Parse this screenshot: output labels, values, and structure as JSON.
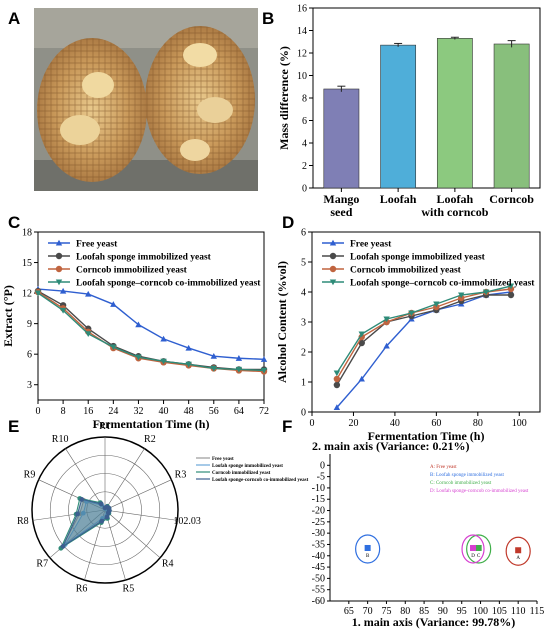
{
  "panels": {
    "A": {
      "label": "A"
    },
    "B": {
      "label": "B",
      "chart_data": {
        "type": "bar",
        "categories": [
          "Mango\nseed",
          "Loofah",
          "Loofah\nwith corncob",
          "Corncob"
        ],
        "values": [
          8.8,
          12.7,
          13.3,
          12.8
        ],
        "errors": [
          0.25,
          0.15,
          0.1,
          0.3
        ],
        "colors": [
          "#7f7fb5",
          "#4faed9",
          "#8cc97f",
          "#88bf7c"
        ],
        "ylabel": "Mass difference (%)",
        "xlabel": "",
        "ylim": [
          0,
          16
        ],
        "yticks": [
          0,
          2,
          4,
          6,
          8,
          10,
          12,
          14,
          16
        ]
      }
    },
    "C": {
      "label": "C",
      "chart_data": {
        "type": "line",
        "xlabel": "Fermentation Time (h)",
        "ylabel": "Extract (°P)",
        "xlim": [
          0,
          72
        ],
        "ylim": [
          1.5,
          18
        ],
        "xticks": [
          0,
          8,
          16,
          24,
          32,
          40,
          48,
          56,
          64,
          72
        ],
        "yticks": [
          3,
          6,
          9,
          12,
          15,
          18
        ],
        "legend_position": "top-left",
        "x": [
          0,
          8,
          16,
          24,
          32,
          40,
          48,
          56,
          64,
          72
        ],
        "series": [
          {
            "name": "Free yeast",
            "color": "#2f5fd0",
            "marker": "triangle",
            "values": [
              12.4,
              12.2,
              11.9,
              10.9,
              8.9,
              7.5,
              6.6,
              5.8,
              5.6,
              5.5
            ]
          },
          {
            "name": "Loofah sponge immobilized yeast",
            "color": "#4a4a4a",
            "marker": "circle",
            "values": [
              12.2,
              10.8,
              8.5,
              6.8,
              5.8,
              5.3,
              5.0,
              4.7,
              4.5,
              4.5
            ]
          },
          {
            "name": "Corncob immobilized yeast",
            "color": "#c0643f",
            "marker": "circle",
            "values": [
              12.1,
              10.5,
              8.2,
              6.6,
              5.6,
              5.2,
              4.9,
              4.6,
              4.4,
              4.3
            ]
          },
          {
            "name": "Loofah sponge–corncob co-immobilized yeast",
            "color": "#2e8b78",
            "marker": "triangle-down",
            "values": [
              12.0,
              10.3,
              8.0,
              6.7,
              5.7,
              5.3,
              5.0,
              4.6,
              4.5,
              4.4
            ]
          }
        ]
      }
    },
    "D": {
      "label": "D",
      "chart_data": {
        "type": "line",
        "xlabel": "Fermentation Time (h)",
        "ylabel": "Alcohol Content (%vol)",
        "xlim": [
          0,
          110
        ],
        "ylim": [
          0,
          6
        ],
        "xticks": [
          0,
          20,
          40,
          60,
          80,
          100
        ],
        "yticks": [
          0,
          1,
          2,
          3,
          4,
          5,
          6
        ],
        "legend_position": "top-left",
        "x": [
          12,
          24,
          36,
          48,
          60,
          72,
          84,
          96
        ],
        "series": [
          {
            "name": "Free yeast",
            "color": "#2f5fd0",
            "marker": "triangle",
            "values": [
              0.15,
              1.1,
              2.2,
              3.1,
              3.4,
              3.6,
              3.9,
              4.0
            ]
          },
          {
            "name": "Loofah sponge immobilized yeast",
            "color": "#4a4a4a",
            "marker": "circle",
            "values": [
              0.9,
              2.3,
              3.0,
              3.2,
              3.4,
              3.7,
              3.9,
              3.9
            ]
          },
          {
            "name": "Corncob immobilized yeast",
            "color": "#c0643f",
            "marker": "circle",
            "values": [
              1.1,
              2.5,
              3.0,
              3.3,
              3.5,
              3.8,
              4.0,
              4.1
            ]
          },
          {
            "name": "Loofah sponge–corncob co-immobilized yeast",
            "color": "#2e8b78",
            "marker": "triangle-down",
            "values": [
              1.3,
              2.6,
              3.1,
              3.3,
              3.6,
              3.9,
              4.0,
              4.2
            ]
          }
        ]
      }
    },
    "E": {
      "label": "E",
      "chart_data": {
        "type": "radar",
        "axes": [
          "R1",
          "R2",
          "R3",
          "102.03",
          "R4",
          "R5",
          "R6",
          "R7",
          "R8",
          "R9",
          "R10"
        ],
        "max": 1.0,
        "legend_position": "top-right",
        "series": [
          {
            "name": "Free yeast",
            "color": "#9a9a9a",
            "values": [
              0.02,
              0.05,
              0.05,
              0.05,
              0.06,
              0.1,
              0.15,
              0.78,
              0.35,
              0.32,
              0.1
            ]
          },
          {
            "name": "Loofah sponge immobilized yeast",
            "color": "#6aa7d8",
            "values": [
              0.02,
              0.04,
              0.05,
              0.05,
              0.05,
              0.08,
              0.12,
              0.72,
              0.3,
              0.28,
              0.08
            ]
          },
          {
            "name": "Corncob immobilized yeast",
            "color": "#2e8b78",
            "values": [
              0.03,
              0.06,
              0.06,
              0.06,
              0.07,
              0.12,
              0.18,
              0.8,
              0.4,
              0.38,
              0.12
            ]
          },
          {
            "name": "Loofah sponge-corncob co-immobilized yeast",
            "color": "#3c5f8f",
            "values": [
              0.03,
              0.05,
              0.06,
              0.06,
              0.06,
              0.1,
              0.16,
              0.76,
              0.38,
              0.35,
              0.1
            ]
          }
        ]
      }
    },
    "F": {
      "label": "F",
      "chart_data": {
        "type": "scatter",
        "title": "2. main axis (Variance: 0.21%)",
        "xlabel": "1. main axis (Variance: 99.78%)",
        "ylabel": "",
        "xlim": [
          60,
          115
        ],
        "ylim": [
          -60,
          5
        ],
        "xticks": [
          65,
          70,
          75,
          80,
          85,
          90,
          95,
          100,
          105,
          110,
          115
        ],
        "yticks": [
          0,
          -5,
          -10,
          -15,
          -20,
          -25,
          -30,
          -35,
          -40,
          -45,
          -50,
          -55,
          -60
        ],
        "legend_position": "top-right",
        "groups": [
          {
            "id": "A",
            "name": "A: Free yeast",
            "color": "#c0392b",
            "x": 110,
            "y": -38
          },
          {
            "id": "B",
            "name": "B: Loofah sponge immobilized yeast",
            "color": "#2f6fe0",
            "x": 70,
            "y": -37
          },
          {
            "id": "C",
            "name": "C: Corncob immobilized yeast",
            "color": "#3fae49",
            "x": 99.5,
            "y": -37
          },
          {
            "id": "D",
            "name": "D: Loofah sponge-corncob co-immobilized yeast",
            "color": "#d63fd0",
            "x": 98,
            "y": -37
          }
        ]
      }
    }
  }
}
